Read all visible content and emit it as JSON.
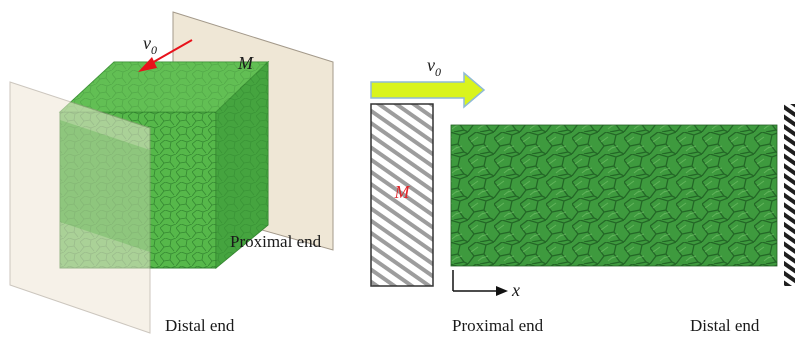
{
  "left_panel": {
    "velocity_label": "v",
    "velocity_subscript": "0",
    "mass_label": "M",
    "proximal_label": "Proximal end",
    "distal_label": "Distal end",
    "colors": {
      "plate": "#efe7d6",
      "plate_edge": "#9c927f",
      "specimen": "#4fb145",
      "specimen_dark": "#2f7f2c",
      "arrow": "#e8121b"
    }
  },
  "right_panel": {
    "velocity_label": "v",
    "velocity_subscript": "0",
    "mass_label": "M",
    "axis_label": "x",
    "proximal_label": "Proximal end",
    "distal_label": "Distal end",
    "colors": {
      "arrow_fill": "#d9f41d",
      "arrow_stroke": "#8fbad6",
      "hatch": "#a0a0a0",
      "mass_text": "#e0262b",
      "specimen": "#2f8a2f"
    }
  }
}
